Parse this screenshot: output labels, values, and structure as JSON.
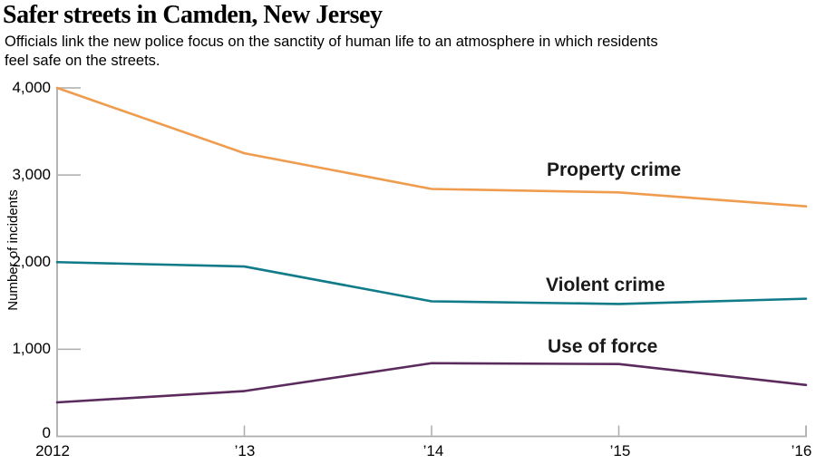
{
  "header": {
    "title": "Safer streets in Camden, New Jersey",
    "subtitle_lines": [
      "Officials link the new police focus on the sanctity of human life to an atmosphere in which residents",
      "feel safe on the streets."
    ]
  },
  "chart_data": {
    "type": "line",
    "title": "Safer streets in Camden, New Jersey",
    "x": [
      2012,
      2013,
      2014,
      2015,
      2016
    ],
    "x_tick_labels": [
      "2012",
      "’13",
      "’14",
      "’15",
      "’16"
    ],
    "xlabel": "",
    "ylabel": "Number of incidents",
    "ylim": [
      0,
      4000
    ],
    "y_ticks": [
      0,
      1000,
      2000,
      3000,
      4000
    ],
    "y_tick_labels": [
      "0",
      "1,000",
      "2,000",
      "3,000",
      "4,000"
    ],
    "grid": false,
    "legend_position": "inline-labels-right-of-lines",
    "series": [
      {
        "name": "Property crime",
        "color": "#F09C4F",
        "values": [
          4000,
          3250,
          2840,
          2800,
          2640
        ]
      },
      {
        "name": "Violent crime",
        "color": "#117B8A",
        "values": [
          2000,
          1950,
          1550,
          1520,
          1580
        ]
      },
      {
        "name": "Use of force",
        "color": "#5C2B5E",
        "values": [
          390,
          520,
          840,
          830,
          590
        ]
      }
    ]
  },
  "colors": {
    "axis": "#ACACAC",
    "text": "#000000"
  }
}
